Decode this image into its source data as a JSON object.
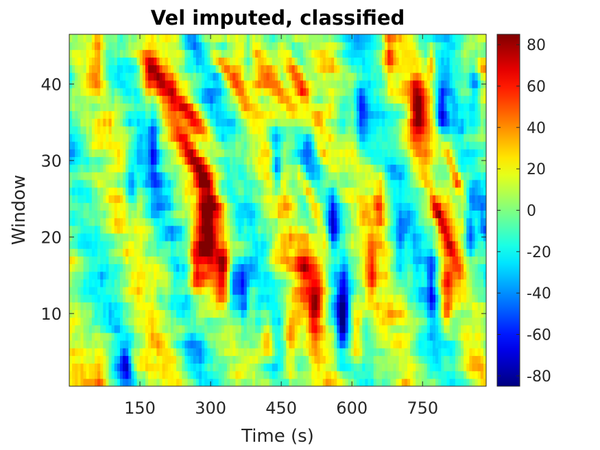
{
  "chart_data": {
    "type": "heatmap",
    "title": "Vel imputed, classified",
    "xlabel": "Time (s)",
    "ylabel": "Window",
    "xlim": [
      0,
      885
    ],
    "ylim": [
      0.5,
      46.5
    ],
    "x_ticks": [
      150,
      300,
      450,
      600,
      750
    ],
    "y_ticks": [
      10,
      20,
      30,
      40
    ],
    "n_rows": 46,
    "n_cols": 148,
    "colormap": "jet",
    "clim": [
      -85,
      85
    ],
    "colorbar": {
      "ticks": [
        80,
        60,
        40,
        20,
        0,
        -20,
        -40,
        -60,
        -80
      ]
    },
    "features": [
      {
        "x": 230,
        "y": 38,
        "sx": 16,
        "sy": 5,
        "amp": 55,
        "slope": -13
      },
      {
        "x": 265,
        "y": 30,
        "sx": 14,
        "sy": 5,
        "amp": 60,
        "slope": -8
      },
      {
        "x": 285,
        "y": 23,
        "sx": 10,
        "sy": 3,
        "amp": 45,
        "slope": 0
      },
      {
        "x": 300,
        "y": 20,
        "sx": 12,
        "sy": 3,
        "amp": 65,
        "slope": 0
      },
      {
        "x": 270,
        "y": 16,
        "sx": 12,
        "sy": 3,
        "amp": 60,
        "slope": 0
      },
      {
        "x": 325,
        "y": 16,
        "sx": 10,
        "sy": 3,
        "amp": 50,
        "slope": 0
      },
      {
        "x": 350,
        "y": 14,
        "sx": 10,
        "sy": 3,
        "amp": -60,
        "slope": 0
      },
      {
        "x": 370,
        "y": 12,
        "sx": 8,
        "sy": 3,
        "amp": -55,
        "slope": 0
      },
      {
        "x": 170,
        "y": 41,
        "sx": 12,
        "sy": 3,
        "amp": 45,
        "slope": 0
      },
      {
        "x": 340,
        "y": 41,
        "sx": 14,
        "sy": 3,
        "amp": 50,
        "slope": -10
      },
      {
        "x": 440,
        "y": 40,
        "sx": 16,
        "sy": 4,
        "amp": 60,
        "slope": -10
      },
      {
        "x": 480,
        "y": 42,
        "sx": 10,
        "sy": 3,
        "amp": 50,
        "slope": -8
      },
      {
        "x": 500,
        "y": 38,
        "sx": 12,
        "sy": 4,
        "amp": 55,
        "slope": -9
      },
      {
        "x": 530,
        "y": 32,
        "sx": 10,
        "sy": 3,
        "amp": 40,
        "slope": -8
      },
      {
        "x": 440,
        "y": 30,
        "sx": 8,
        "sy": 3,
        "amp": -60,
        "slope": 0
      },
      {
        "x": 510,
        "y": 33,
        "sx": 10,
        "sy": 3,
        "amp": -40,
        "slope": 0
      },
      {
        "x": 580,
        "y": 36,
        "sx": 12,
        "sy": 3,
        "amp": -40,
        "slope": 0
      },
      {
        "x": 620,
        "y": 36,
        "sx": 10,
        "sy": 3,
        "amp": -50,
        "slope": 0
      },
      {
        "x": 520,
        "y": 24,
        "sx": 10,
        "sy": 4,
        "amp": 50,
        "slope": -6
      },
      {
        "x": 560,
        "y": 22,
        "sx": 8,
        "sy": 3,
        "amp": -55,
        "slope": 0
      },
      {
        "x": 500,
        "y": 16,
        "sx": 12,
        "sy": 3,
        "amp": 45,
        "slope": 0
      },
      {
        "x": 530,
        "y": 14,
        "sx": 12,
        "sy": 3,
        "amp": 50,
        "slope": 0
      },
      {
        "x": 520,
        "y": 10,
        "sx": 10,
        "sy": 3,
        "amp": 40,
        "slope": 0
      },
      {
        "x": 470,
        "y": 6,
        "sx": 10,
        "sy": 3,
        "amp": 55,
        "slope": 0
      },
      {
        "x": 420,
        "y": 7,
        "sx": 8,
        "sy": 2,
        "amp": 45,
        "slope": 0
      },
      {
        "x": 580,
        "y": 10,
        "sx": 8,
        "sy": 4,
        "amp": -65,
        "slope": 0
      },
      {
        "x": 610,
        "y": 8,
        "sx": 8,
        "sy": 3,
        "amp": 45,
        "slope": 0
      },
      {
        "x": 740,
        "y": 37,
        "sx": 12,
        "sy": 3,
        "amp": 70,
        "slope": 0
      },
      {
        "x": 790,
        "y": 36,
        "sx": 8,
        "sy": 3,
        "amp": -55,
        "slope": 0
      },
      {
        "x": 770,
        "y": 43,
        "sx": 6,
        "sy": 2,
        "amp": 40,
        "slope": 0
      },
      {
        "x": 790,
        "y": 22,
        "sx": 8,
        "sy": 4,
        "amp": 50,
        "slope": -6
      },
      {
        "x": 820,
        "y": 28,
        "sx": 8,
        "sy": 4,
        "amp": 45,
        "slope": -6
      },
      {
        "x": 770,
        "y": 14,
        "sx": 8,
        "sy": 4,
        "amp": -40,
        "slope": 0
      },
      {
        "x": 800,
        "y": 12,
        "sx": 8,
        "sy": 4,
        "amp": 45,
        "slope": 0
      },
      {
        "x": 860,
        "y": 40,
        "sx": 8,
        "sy": 3,
        "amp": -40,
        "slope": 0
      },
      {
        "x": 850,
        "y": 20,
        "sx": 8,
        "sy": 3,
        "amp": -45,
        "slope": 0
      },
      {
        "x": 120,
        "y": 3,
        "sx": 8,
        "sy": 2,
        "amp": -55,
        "slope": 0
      },
      {
        "x": 70,
        "y": 2,
        "sx": 12,
        "sy": 2,
        "amp": 40,
        "slope": 0
      },
      {
        "x": 180,
        "y": 32,
        "sx": 8,
        "sy": 4,
        "amp": -40,
        "slope": 0
      },
      {
        "x": 130,
        "y": 26,
        "sx": 8,
        "sy": 3,
        "amp": -35,
        "slope": 0
      },
      {
        "x": 60,
        "y": 44,
        "sx": 8,
        "sy": 3,
        "amp": 40,
        "slope": 0
      },
      {
        "x": 380,
        "y": 44,
        "sx": 8,
        "sy": 3,
        "amp": -40,
        "slope": 0
      },
      {
        "x": 680,
        "y": 44,
        "sx": 8,
        "sy": 3,
        "amp": 40,
        "slope": 0
      },
      {
        "x": 660,
        "y": 24,
        "sx": 8,
        "sy": 3,
        "amp": 40,
        "slope": 0
      },
      {
        "x": 700,
        "y": 18,
        "sx": 8,
        "sy": 3,
        "amp": -40,
        "slope": 0
      },
      {
        "x": 640,
        "y": 16,
        "sx": 8,
        "sy": 3,
        "amp": 40,
        "slope": 0
      }
    ]
  }
}
